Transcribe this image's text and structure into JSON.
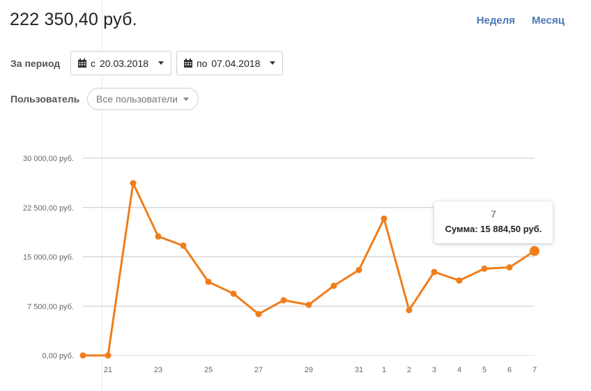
{
  "total": "222 350,40 руб.",
  "range_links": [
    "Неделя",
    "Месяц"
  ],
  "filters": {
    "period_label": "За период",
    "from_prefix": "с",
    "from_date": "20.03.2018",
    "to_prefix": "по",
    "to_date": "07.04.2018",
    "user_label": "Пользователь",
    "user_value": "Все пользователи"
  },
  "tooltip": {
    "title": "7",
    "value": "Сумма: 15 884,50 руб."
  },
  "colors": {
    "line": "#f07d1a",
    "grid": "#c8c8c8",
    "link": "#4a79b8"
  },
  "chart_data": {
    "type": "line",
    "x": [
      "20",
      "21",
      "22",
      "23",
      "24",
      "25",
      "26",
      "27",
      "28",
      "29",
      "30",
      "31",
      "1",
      "2",
      "3",
      "4",
      "5",
      "6",
      "7"
    ],
    "x_tick_labels": [
      "",
      "21",
      "",
      "23",
      "",
      "25",
      "",
      "27",
      "",
      "29",
      "",
      "31",
      "1",
      "2",
      "3",
      "4",
      "5",
      "6",
      "7"
    ],
    "y_tick_labels": [
      "0,00 руб.",
      "7 500,00 руб.",
      "15 000,00 руб.",
      "22 500,00 руб.",
      "30 000,00 руб."
    ],
    "y_ticks": [
      0,
      7500,
      15000,
      22500,
      30000
    ],
    "ylim": [
      0,
      30000
    ],
    "values": [
      0,
      0,
      26200,
      18100,
      16700,
      11200,
      9400,
      6300,
      8400,
      7700,
      10600,
      13000,
      20800,
      6900,
      12700,
      11400,
      13200,
      13400,
      15884.5
    ],
    "highlight_index": 18,
    "grid": true
  }
}
